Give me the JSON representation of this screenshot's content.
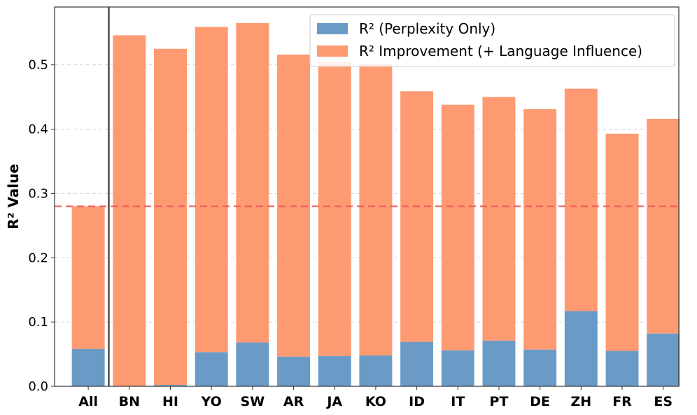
{
  "chart_data": {
    "type": "bar",
    "stacked": true,
    "title": "",
    "xlabel": "",
    "ylabel": "R² Value",
    "ylim": [
      0,
      0.59
    ],
    "yticks": [
      0.0,
      0.1,
      0.2,
      0.3,
      0.4,
      0.5
    ],
    "ytick_labels": [
      "0.0",
      "0.1",
      "0.2",
      "0.3",
      "0.4",
      "0.5"
    ],
    "categories": [
      "All",
      "BN",
      "HI",
      "YO",
      "SW",
      "AR",
      "JA",
      "KO",
      "ID",
      "IT",
      "PT",
      "DE",
      "ZH",
      "FR",
      "ES"
    ],
    "series": [
      {
        "name": "R² (Perplexity Only)",
        "color": "#6a9bc7",
        "values": [
          0.058,
          0.0,
          0.002,
          0.053,
          0.068,
          0.046,
          0.047,
          0.048,
          0.069,
          0.056,
          0.071,
          0.057,
          0.117,
          0.055,
          0.082
        ]
      },
      {
        "name": "R² Improvement (+ Language Influence)",
        "color": "#fe9a72",
        "values": [
          0.222,
          0.546,
          0.523,
          0.506,
          0.497,
          0.47,
          0.457,
          0.454,
          0.39,
          0.382,
          0.379,
          0.374,
          0.346,
          0.338,
          0.334
        ]
      }
    ],
    "reference_line": {
      "value": 0.28,
      "color": "#f05c5c",
      "style": "dashed"
    },
    "separator_after_category": "All",
    "legend_position": "top-right",
    "grid": "y-dashed"
  }
}
